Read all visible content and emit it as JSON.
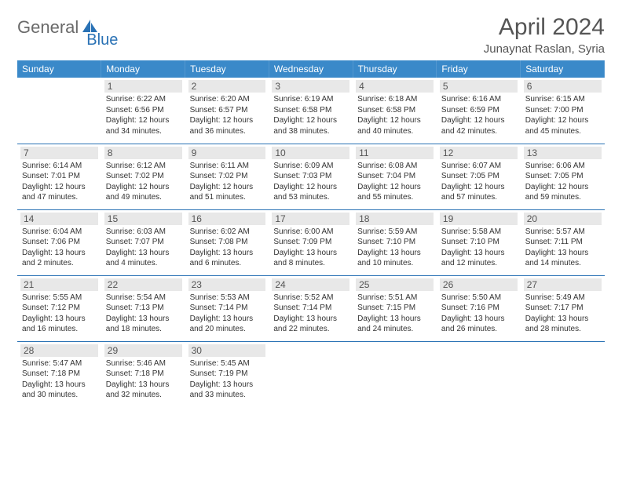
{
  "brand": {
    "part1": "General",
    "part2": "Blue",
    "logo_color": "#2a72b5"
  },
  "title": "April 2024",
  "location": "Junaynat Raslan, Syria",
  "colors": {
    "header_bg": "#3a89c9",
    "header_fg": "#ffffff",
    "grid_border": "#2a72b5",
    "daynum_bg": "#e8e8e8",
    "text": "#333333",
    "title_color": "#555555"
  },
  "calendar": {
    "type": "table",
    "columns": [
      "Sunday",
      "Monday",
      "Tuesday",
      "Wednesday",
      "Thursday",
      "Friday",
      "Saturday"
    ],
    "month_start_col": 1,
    "days_in_month": 30,
    "days": {
      "1": {
        "sunrise": "6:22 AM",
        "sunset": "6:56 PM",
        "daylight": "12 hours and 34 minutes."
      },
      "2": {
        "sunrise": "6:20 AM",
        "sunset": "6:57 PM",
        "daylight": "12 hours and 36 minutes."
      },
      "3": {
        "sunrise": "6:19 AM",
        "sunset": "6:58 PM",
        "daylight": "12 hours and 38 minutes."
      },
      "4": {
        "sunrise": "6:18 AM",
        "sunset": "6:58 PM",
        "daylight": "12 hours and 40 minutes."
      },
      "5": {
        "sunrise": "6:16 AM",
        "sunset": "6:59 PM",
        "daylight": "12 hours and 42 minutes."
      },
      "6": {
        "sunrise": "6:15 AM",
        "sunset": "7:00 PM",
        "daylight": "12 hours and 45 minutes."
      },
      "7": {
        "sunrise": "6:14 AM",
        "sunset": "7:01 PM",
        "daylight": "12 hours and 47 minutes."
      },
      "8": {
        "sunrise": "6:12 AM",
        "sunset": "7:02 PM",
        "daylight": "12 hours and 49 minutes."
      },
      "9": {
        "sunrise": "6:11 AM",
        "sunset": "7:02 PM",
        "daylight": "12 hours and 51 minutes."
      },
      "10": {
        "sunrise": "6:09 AM",
        "sunset": "7:03 PM",
        "daylight": "12 hours and 53 minutes."
      },
      "11": {
        "sunrise": "6:08 AM",
        "sunset": "7:04 PM",
        "daylight": "12 hours and 55 minutes."
      },
      "12": {
        "sunrise": "6:07 AM",
        "sunset": "7:05 PM",
        "daylight": "12 hours and 57 minutes."
      },
      "13": {
        "sunrise": "6:06 AM",
        "sunset": "7:05 PM",
        "daylight": "12 hours and 59 minutes."
      },
      "14": {
        "sunrise": "6:04 AM",
        "sunset": "7:06 PM",
        "daylight": "13 hours and 2 minutes."
      },
      "15": {
        "sunrise": "6:03 AM",
        "sunset": "7:07 PM",
        "daylight": "13 hours and 4 minutes."
      },
      "16": {
        "sunrise": "6:02 AM",
        "sunset": "7:08 PM",
        "daylight": "13 hours and 6 minutes."
      },
      "17": {
        "sunrise": "6:00 AM",
        "sunset": "7:09 PM",
        "daylight": "13 hours and 8 minutes."
      },
      "18": {
        "sunrise": "5:59 AM",
        "sunset": "7:10 PM",
        "daylight": "13 hours and 10 minutes."
      },
      "19": {
        "sunrise": "5:58 AM",
        "sunset": "7:10 PM",
        "daylight": "13 hours and 12 minutes."
      },
      "20": {
        "sunrise": "5:57 AM",
        "sunset": "7:11 PM",
        "daylight": "13 hours and 14 minutes."
      },
      "21": {
        "sunrise": "5:55 AM",
        "sunset": "7:12 PM",
        "daylight": "13 hours and 16 minutes."
      },
      "22": {
        "sunrise": "5:54 AM",
        "sunset": "7:13 PM",
        "daylight": "13 hours and 18 minutes."
      },
      "23": {
        "sunrise": "5:53 AM",
        "sunset": "7:14 PM",
        "daylight": "13 hours and 20 minutes."
      },
      "24": {
        "sunrise": "5:52 AM",
        "sunset": "7:14 PM",
        "daylight": "13 hours and 22 minutes."
      },
      "25": {
        "sunrise": "5:51 AM",
        "sunset": "7:15 PM",
        "daylight": "13 hours and 24 minutes."
      },
      "26": {
        "sunrise": "5:50 AM",
        "sunset": "7:16 PM",
        "daylight": "13 hours and 26 minutes."
      },
      "27": {
        "sunrise": "5:49 AM",
        "sunset": "7:17 PM",
        "daylight": "13 hours and 28 minutes."
      },
      "28": {
        "sunrise": "5:47 AM",
        "sunset": "7:18 PM",
        "daylight": "13 hours and 30 minutes."
      },
      "29": {
        "sunrise": "5:46 AM",
        "sunset": "7:18 PM",
        "daylight": "13 hours and 32 minutes."
      },
      "30": {
        "sunrise": "5:45 AM",
        "sunset": "7:19 PM",
        "daylight": "13 hours and 33 minutes."
      }
    },
    "labels": {
      "sunrise": "Sunrise:",
      "sunset": "Sunset:",
      "daylight": "Daylight:"
    }
  }
}
